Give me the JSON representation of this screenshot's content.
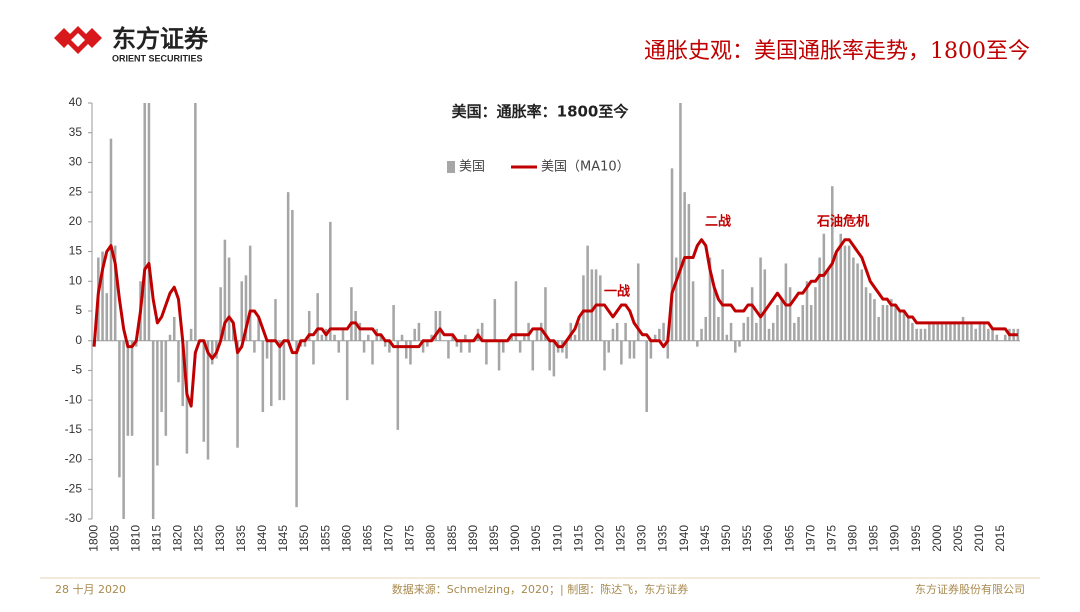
{
  "header": {
    "logo_cn": "东方证券",
    "logo_en": "ORIENT SECURITIES",
    "title": "通胀史观：美国通胀率走势，1800至今"
  },
  "chart_data": {
    "type": "bar_line",
    "title": "美国：通胀率：1800至今",
    "categories": [
      "1800",
      null,
      null,
      null,
      null,
      "1805",
      null,
      null,
      null,
      null,
      "1810",
      null,
      null,
      null,
      null,
      "1815",
      null,
      null,
      null,
      null,
      "1820",
      null,
      null,
      null,
      null,
      "1825",
      null,
      null,
      null,
      null,
      "1830",
      null,
      null,
      null,
      null,
      "1835",
      null,
      null,
      null,
      null,
      "1840",
      null,
      null,
      null,
      null,
      "1845",
      null,
      null,
      null,
      null,
      "1850",
      null,
      null,
      null,
      null,
      "1855",
      null,
      null,
      null,
      null,
      "1860",
      null,
      null,
      null,
      null,
      "1865",
      null,
      null,
      null,
      null,
      "1870",
      null,
      null,
      null,
      null,
      "1875",
      null,
      null,
      null,
      null,
      "1880",
      null,
      null,
      null,
      null,
      "1885",
      null,
      null,
      null,
      null,
      "1890",
      null,
      null,
      null,
      null,
      "1895",
      null,
      null,
      null,
      null,
      "1900",
      null,
      null,
      null,
      null,
      "1905",
      null,
      null,
      null,
      null,
      "1910",
      null,
      null,
      null,
      null,
      "1915",
      null,
      null,
      null,
      null,
      "1920",
      null,
      null,
      null,
      null,
      "1925",
      null,
      null,
      null,
      null,
      "1930",
      null,
      null,
      null,
      null,
      "1935",
      null,
      null,
      null,
      null,
      "1940",
      null,
      null,
      null,
      null,
      "1945",
      null,
      null,
      null,
      null,
      "1950",
      null,
      null,
      null,
      null,
      "1955",
      null,
      null,
      null,
      null,
      "1960",
      null,
      null,
      null,
      null,
      "1965",
      null,
      null,
      null,
      null,
      "1970",
      null,
      null,
      null,
      null,
      "1975",
      null,
      null,
      null,
      null,
      "1980",
      null,
      null,
      null,
      null,
      "1985",
      null,
      null,
      null,
      null,
      "1990",
      null,
      null,
      null,
      null,
      "1995",
      null,
      null,
      null,
      null,
      "2000",
      null,
      null,
      null,
      null,
      "2005",
      null,
      null,
      null,
      null,
      "2010",
      null,
      null,
      null,
      null,
      "2015",
      null,
      null,
      null,
      null
    ],
    "series": [
      {
        "name": "美国",
        "kind": "bar",
        "color": "#a6a6a6",
        "values": [
          -1,
          14,
          15,
          8,
          34,
          16,
          -23,
          -30,
          -16,
          -16,
          -1,
          10,
          40,
          40,
          -30,
          -21,
          -12,
          -16,
          1,
          4,
          -7,
          -11,
          -19,
          2,
          40,
          0,
          -17,
          -20,
          -4,
          -3,
          9,
          17,
          14,
          3,
          -18,
          10,
          11,
          16,
          -2,
          4,
          -12,
          -3,
          -11,
          7,
          -10,
          -10,
          25,
          22,
          -28,
          -1,
          -1,
          5,
          -4,
          8,
          1,
          2,
          20,
          1,
          -2,
          2,
          -10,
          9,
          5,
          3,
          -2,
          1,
          -4,
          2,
          1,
          -1,
          -2,
          6,
          -15,
          1,
          -3,
          -4,
          2,
          3,
          -2,
          -1,
          1,
          5,
          5,
          0,
          -3,
          1,
          -1,
          -2,
          1,
          -2,
          0,
          2,
          3,
          -4,
          0,
          7,
          -5,
          -2,
          0,
          1,
          10,
          -2,
          1,
          3,
          -5,
          2,
          3,
          9,
          -5,
          -6,
          -2,
          -2,
          -3,
          3,
          1,
          3,
          11,
          16,
          12,
          12,
          11,
          -5,
          -2,
          2,
          3,
          -4,
          3,
          -3,
          -3,
          13,
          0,
          -12,
          -3,
          1,
          2,
          3,
          -3,
          29,
          14,
          40,
          25,
          23,
          10,
          -1,
          2,
          4,
          14,
          9,
          4,
          12,
          1,
          3,
          -2,
          -1,
          3,
          4,
          9,
          3,
          14,
          12,
          2,
          3,
          6,
          7,
          13,
          9,
          3,
          4,
          6,
          10,
          6,
          9,
          14,
          18,
          12,
          26,
          15,
          18,
          16,
          16,
          14,
          13,
          12,
          9,
          8,
          7,
          4,
          6,
          6,
          7,
          6,
          5,
          5,
          4,
          3,
          2,
          2,
          2,
          3,
          3,
          3,
          3,
          3,
          3,
          3,
          3,
          4,
          3,
          3,
          2,
          3,
          3,
          2,
          2,
          1,
          0,
          1,
          2,
          2,
          2
        ]
      },
      {
        "name": "美国（MA10）",
        "kind": "line",
        "color": "#c00000",
        "values": [
          -1,
          8,
          12,
          15,
          16,
          13,
          7,
          2,
          -1,
          -1,
          0,
          5,
          12,
          13,
          7,
          3,
          4,
          6,
          8,
          9,
          7,
          0,
          -9,
          -11,
          -2,
          0,
          0,
          -2,
          -3,
          -2,
          0,
          3,
          4,
          3,
          -2,
          -1,
          2,
          5,
          5,
          4,
          2,
          0,
          0,
          0,
          -1,
          0,
          0,
          -2,
          -2,
          0,
          0,
          1,
          1,
          2,
          2,
          1,
          2,
          2,
          2,
          2,
          2,
          3,
          3,
          2,
          2,
          2,
          2,
          1,
          1,
          0,
          0,
          -1,
          -1,
          -1,
          -1,
          -1,
          -1,
          -1,
          0,
          0,
          0,
          1,
          2,
          1,
          1,
          1,
          0,
          0,
          0,
          0,
          0,
          1,
          0,
          0,
          0,
          0,
          0,
          0,
          0,
          1,
          1,
          1,
          1,
          1,
          2,
          2,
          2,
          1,
          0,
          0,
          -1,
          -1,
          0,
          1,
          2,
          4,
          5,
          5,
          5,
          6,
          6,
          6,
          5,
          4,
          5,
          6,
          6,
          5,
          3,
          2,
          1,
          1,
          0,
          0,
          0,
          -1,
          0,
          8,
          10,
          12,
          14,
          14,
          14,
          16,
          17,
          16,
          12,
          9,
          7,
          6,
          6,
          6,
          5,
          5,
          5,
          6,
          6,
          5,
          4,
          5,
          6,
          7,
          8,
          7,
          6,
          6,
          7,
          8,
          8,
          9,
          10,
          10,
          11,
          11,
          12,
          13,
          15,
          16,
          17,
          17,
          16,
          15,
          14,
          12,
          10,
          9,
          8,
          7,
          7,
          6,
          6,
          5,
          5,
          4,
          4,
          3,
          3,
          3,
          3,
          3,
          3,
          3,
          3,
          3,
          3,
          3,
          3,
          3,
          3,
          3,
          3,
          3,
          3,
          2,
          2,
          2,
          2,
          1,
          1,
          1
        ]
      }
    ],
    "ylim": [
      -30,
      40
    ],
    "yticks": [
      -30,
      -25,
      -20,
      -15,
      -10,
      -5,
      0,
      5,
      10,
      15,
      20,
      25,
      30,
      35,
      40
    ],
    "grid": false,
    "legend": "top",
    "annotations": [
      "一战",
      "二战",
      "石油危机"
    ]
  },
  "footer": {
    "date": "28 十月 2020",
    "source": "数据来源：Schmelzing，2020；| 制图：陈达飞，东方证券",
    "company": "东方证券股份有限公司"
  }
}
